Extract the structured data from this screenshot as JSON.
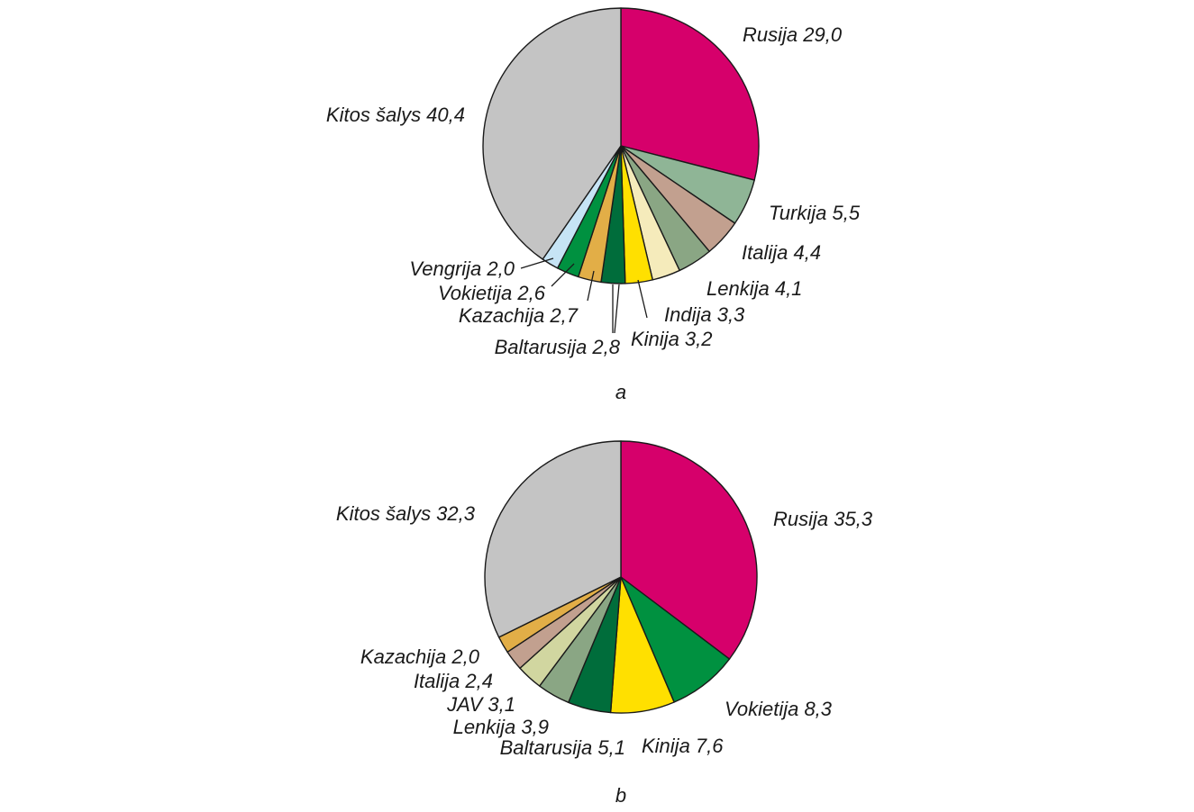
{
  "chart_data": [
    {
      "type": "pie",
      "caption": "a",
      "slices": [
        {
          "name": "Rusija",
          "label": "Rusija 29,0",
          "value": 29.0,
          "color": "#d6006b"
        },
        {
          "name": "Turkija",
          "label": "Turkija 5,5",
          "value": 5.5,
          "color": "#8fb596"
        },
        {
          "name": "Italija",
          "label": "Italija 4,4",
          "value": 4.4,
          "color": "#c2a08f"
        },
        {
          "name": "Lenkija",
          "label": "Lenkija 4,1",
          "value": 4.1,
          "color": "#8aa684"
        },
        {
          "name": "Indija",
          "label": "Indija 3,3",
          "value": 3.3,
          "color": "#f5ebbb"
        },
        {
          "name": "Kinija",
          "label": "Kinija 3,2",
          "value": 3.2,
          "color": "#ffe000"
        },
        {
          "name": "Baltarusija",
          "label": "Baltarusija 2,8",
          "value": 2.8,
          "color": "#006d3b"
        },
        {
          "name": "Kazachija",
          "label": "Kazachija 2,7",
          "value": 2.7,
          "color": "#e2ae47"
        },
        {
          "name": "Vokietija",
          "label": "Vokietija 2,6",
          "value": 2.6,
          "color": "#009140"
        },
        {
          "name": "Vengrija",
          "label": "Vengrija 2,0",
          "value": 2.0,
          "color": "#c6e4f5"
        },
        {
          "name": "Kitos šalys",
          "label": "Kitos šalys 40,4",
          "value": 40.4,
          "color": "#c4c4c4"
        }
      ]
    },
    {
      "type": "pie",
      "caption": "b",
      "slices": [
        {
          "name": "Rusija",
          "label": "Rusija 35,3",
          "value": 35.3,
          "color": "#d6006b"
        },
        {
          "name": "Vokietija",
          "label": "Vokietija 8,3",
          "value": 8.3,
          "color": "#009140"
        },
        {
          "name": "Kinija",
          "label": "Kinija 7,6",
          "value": 7.6,
          "color": "#ffe000"
        },
        {
          "name": "Baltarusija",
          "label": "Baltarusija 5,1",
          "value": 5.1,
          "color": "#006d3b"
        },
        {
          "name": "Lenkija",
          "label": "Lenkija 3,9",
          "value": 3.9,
          "color": "#8aa684"
        },
        {
          "name": "JAV",
          "label": "JAV 3,1",
          "value": 3.1,
          "color": "#d1d6a0"
        },
        {
          "name": "Italija",
          "label": "Italija 2,4",
          "value": 2.4,
          "color": "#c2a08f"
        },
        {
          "name": "Kazachija",
          "label": "Kazachija 2,0",
          "value": 2.0,
          "color": "#e2ae47"
        },
        {
          "name": "Kitos šalys",
          "label": "Kitos šalys 32,3",
          "value": 32.3,
          "color": "#c4c4c4"
        }
      ]
    }
  ]
}
